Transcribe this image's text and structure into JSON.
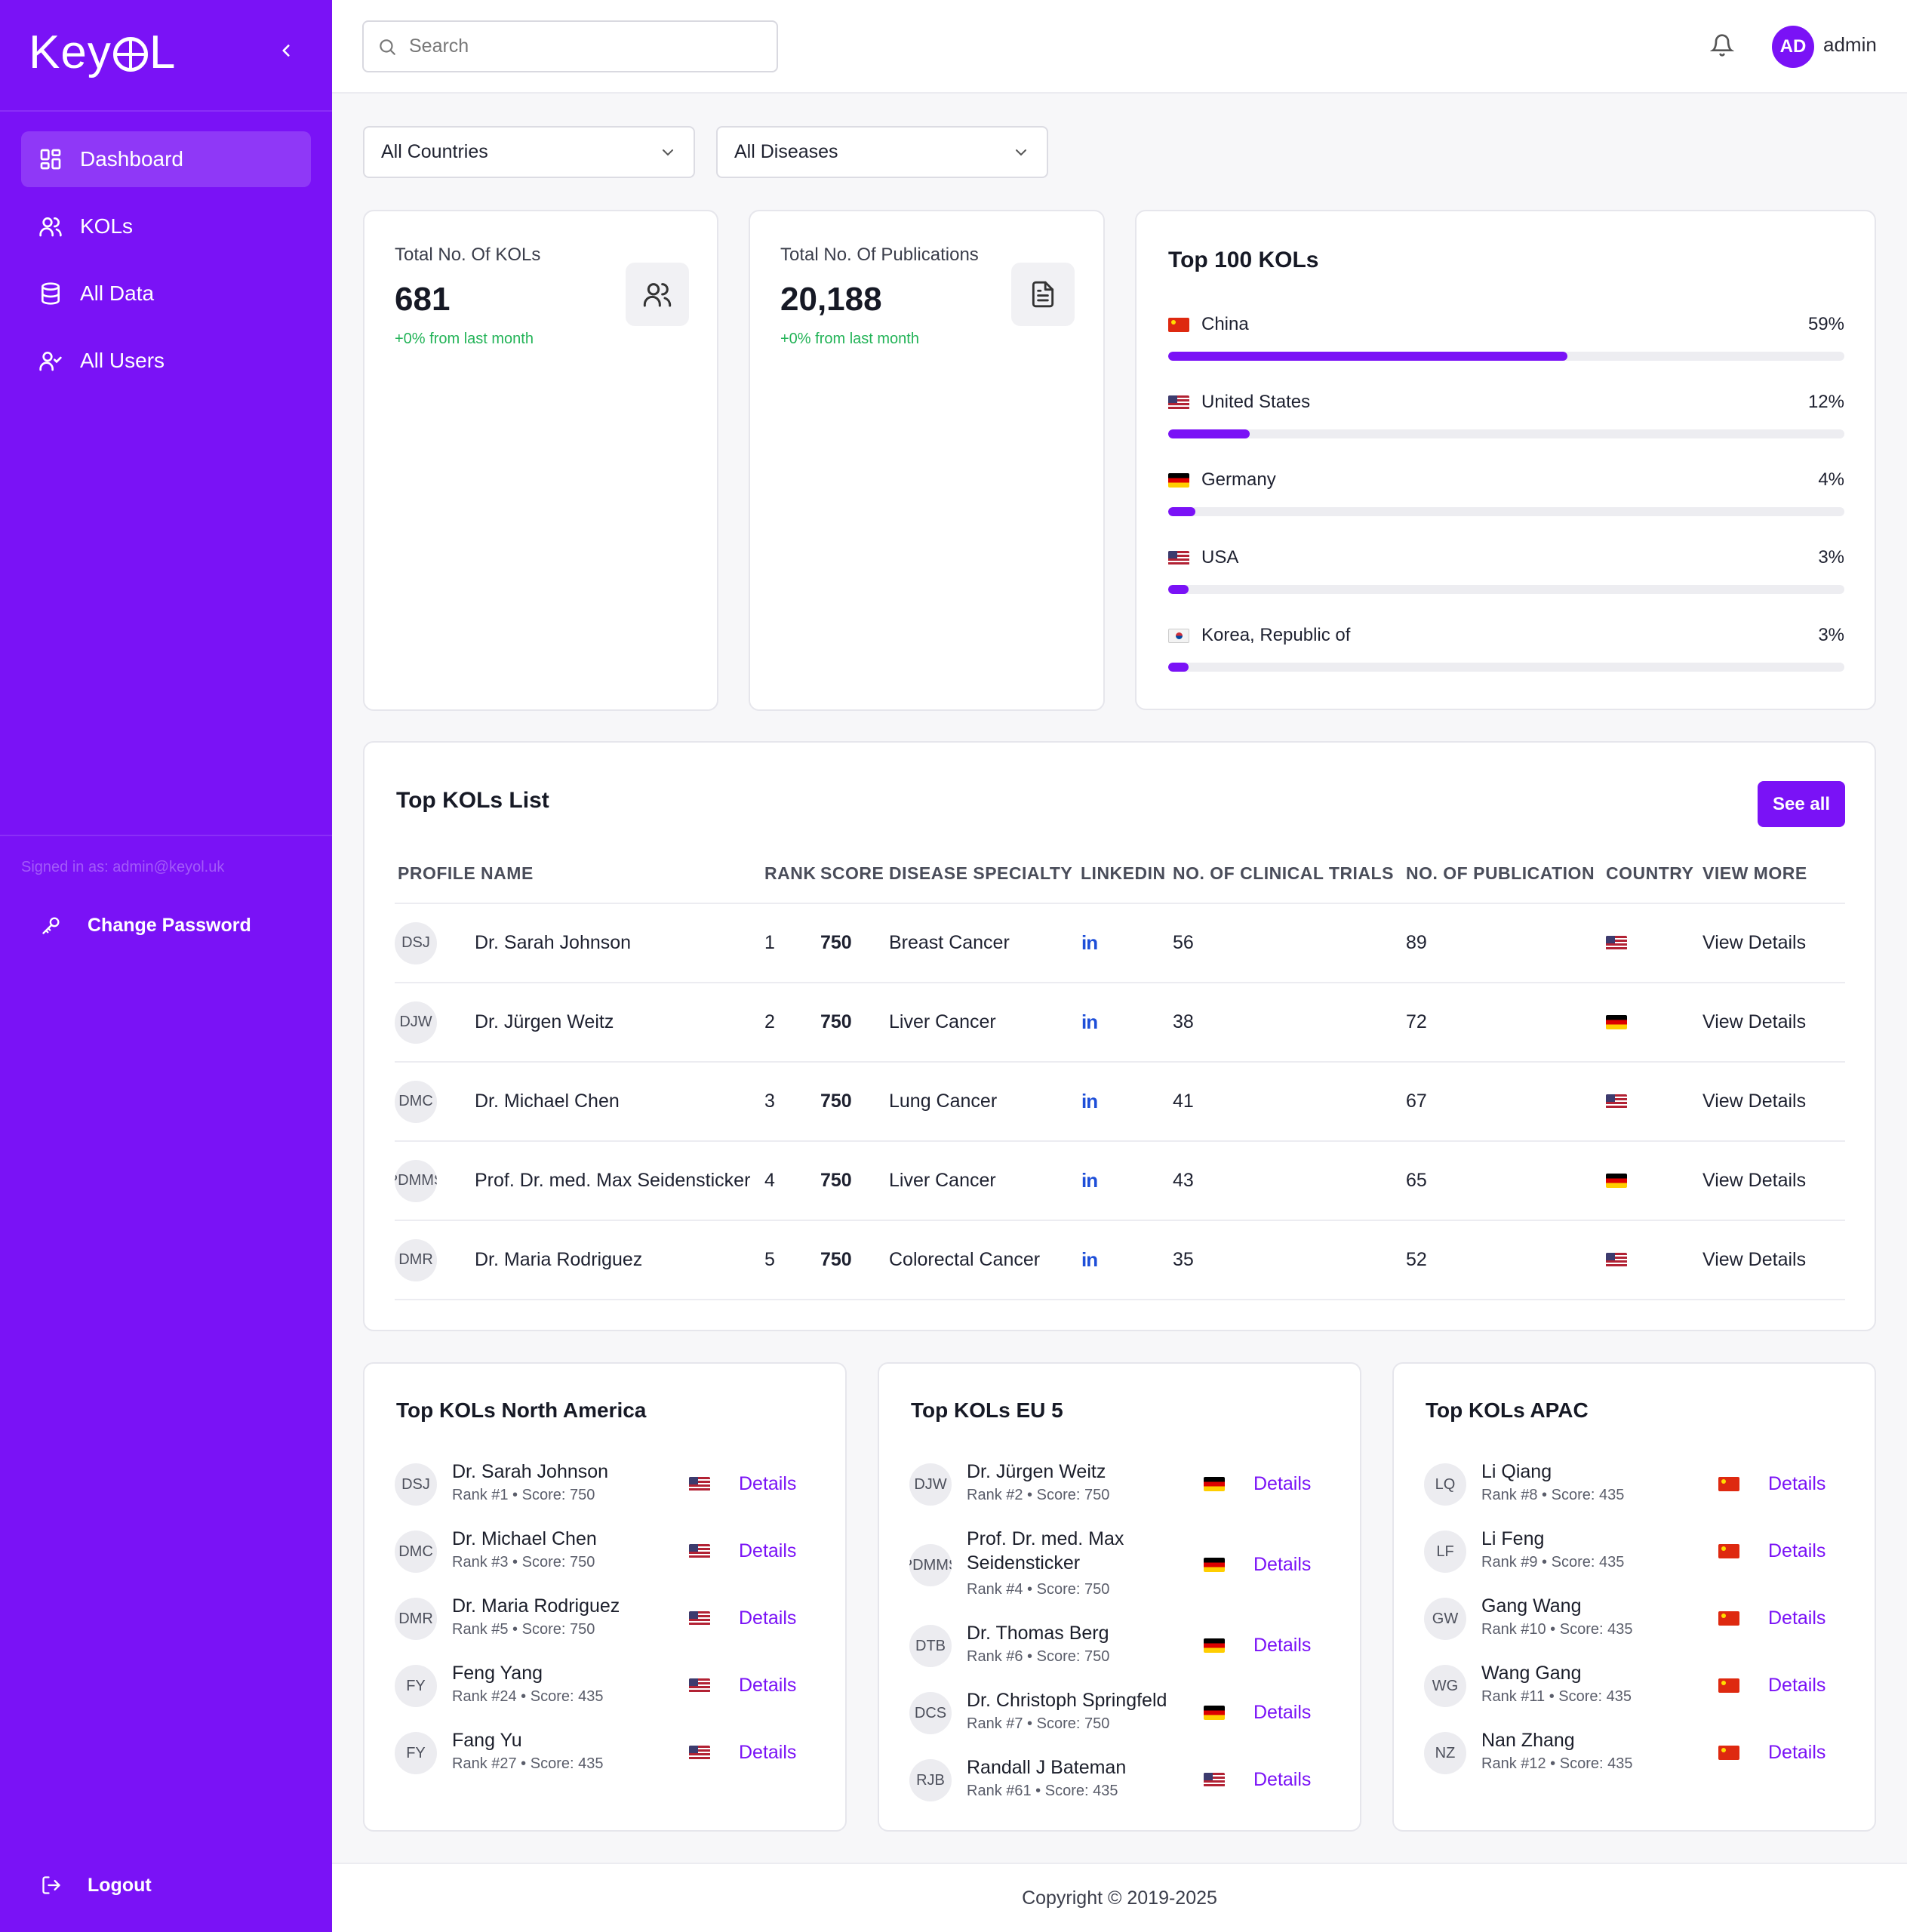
{
  "app": {
    "logo_text_left": "Key",
    "logo_text_right": "L"
  },
  "sidebar": {
    "items": [
      {
        "label": "Dashboard",
        "icon": "dashboard-grid-icon",
        "active": true
      },
      {
        "label": "KOLs",
        "icon": "users-icon",
        "active": false
      },
      {
        "label": "All Data",
        "icon": "database-icon",
        "active": false
      },
      {
        "label": "All Users",
        "icon": "user-check-icon",
        "active": false
      }
    ],
    "signed_in": "Signed in as: admin@keyol.uk",
    "change_password": "Change Password",
    "logout": "Logout"
  },
  "header": {
    "search_placeholder": "Search",
    "avatar_initials": "AD",
    "username": "admin"
  },
  "filters": {
    "country": "All Countries",
    "disease": "All Diseases"
  },
  "stats": {
    "kols": {
      "label": "Total No. Of KOLs",
      "value": "681",
      "delta": "+0% from last month"
    },
    "publications": {
      "label": "Total No. Of Publications",
      "value": "20,188",
      "delta": "+0% from last month"
    }
  },
  "top100": {
    "title": "Top 100 KOLs",
    "countries": [
      {
        "name": "China",
        "pct": "59%",
        "fraction": 0.59,
        "flag": "cn"
      },
      {
        "name": "United States",
        "pct": "12%",
        "fraction": 0.12,
        "flag": "us"
      },
      {
        "name": "Germany",
        "pct": "4%",
        "fraction": 0.04,
        "flag": "de"
      },
      {
        "name": "USA",
        "pct": "3%",
        "fraction": 0.03,
        "flag": "us"
      },
      {
        "name": "Korea, Republic of",
        "pct": "3%",
        "fraction": 0.03,
        "flag": "kr"
      }
    ]
  },
  "kol_table": {
    "title": "Top KOLs List",
    "see_all": "See all",
    "headers": [
      "PROFILE NAME",
      "RANK",
      "SCORE",
      "DISEASE SPECIALTY",
      "LINKEDIN",
      "NO. OF CLINICAL TRIALS",
      "NO. OF PUBLICATION",
      "COUNTRY",
      "VIEW MORE"
    ],
    "linkedin_glyph": "in",
    "view_label": "View Details",
    "rows": [
      {
        "initials": "DSJ",
        "name": "Dr. Sarah Johnson",
        "rank": "1",
        "score": "750",
        "disease": "Breast Cancer",
        "trials": "56",
        "pubs": "89",
        "flag": "us"
      },
      {
        "initials": "DJW",
        "name": "Dr. Jürgen Weitz",
        "rank": "2",
        "score": "750",
        "disease": "Liver Cancer",
        "trials": "38",
        "pubs": "72",
        "flag": "de"
      },
      {
        "initials": "DMC",
        "name": "Dr. Michael Chen",
        "rank": "3",
        "score": "750",
        "disease": "Lung Cancer",
        "trials": "41",
        "pubs": "67",
        "flag": "us"
      },
      {
        "initials": "PDMMS",
        "name": "Prof. Dr. med. Max Seidensticker",
        "rank": "4",
        "score": "750",
        "disease": "Liver Cancer",
        "trials": "43",
        "pubs": "65",
        "flag": "de"
      },
      {
        "initials": "DMR",
        "name": "Dr. Maria Rodriguez",
        "rank": "5",
        "score": "750",
        "disease": "Colorectal Cancer",
        "trials": "35",
        "pubs": "52",
        "flag": "us"
      }
    ]
  },
  "regions": {
    "details_label": "Details",
    "na": {
      "title": "Top KOLs North America",
      "items": [
        {
          "initials": "DSJ",
          "name": "Dr. Sarah Johnson",
          "sub": "Rank #1 • Score: 750",
          "flag": "us"
        },
        {
          "initials": "DMC",
          "name": "Dr. Michael Chen",
          "sub": "Rank #3 • Score: 750",
          "flag": "us"
        },
        {
          "initials": "DMR",
          "name": "Dr. Maria Rodriguez",
          "sub": "Rank #5 • Score: 750",
          "flag": "us"
        },
        {
          "initials": "FY",
          "name": "Feng Yang",
          "sub": "Rank #24 • Score: 435",
          "flag": "us"
        },
        {
          "initials": "FY",
          "name": "Fang Yu",
          "sub": "Rank #27 • Score: 435",
          "flag": "us"
        }
      ]
    },
    "eu": {
      "title": "Top KOLs EU 5",
      "items": [
        {
          "initials": "DJW",
          "name": "Dr. Jürgen Weitz",
          "sub": "Rank #2 • Score: 750",
          "flag": "de"
        },
        {
          "initials": "PDMMS",
          "name": "Prof. Dr. med. Max Seidensticker",
          "sub": "Rank #4 • Score: 750",
          "flag": "de"
        },
        {
          "initials": "DTB",
          "name": "Dr. Thomas Berg",
          "sub": "Rank #6 • Score: 750",
          "flag": "de"
        },
        {
          "initials": "DCS",
          "name": "Dr. Christoph Springfeld",
          "sub": "Rank #7 • Score: 750",
          "flag": "de"
        },
        {
          "initials": "RJB",
          "name": "Randall J Bateman",
          "sub": "Rank #61 • Score: 435",
          "flag": "us"
        }
      ]
    },
    "apac": {
      "title": "Top KOLs APAC",
      "items": [
        {
          "initials": "LQ",
          "name": "Li Qiang",
          "sub": "Rank #8 • Score: 435",
          "flag": "cn"
        },
        {
          "initials": "LF",
          "name": "Li Feng",
          "sub": "Rank #9 • Score: 435",
          "flag": "cn"
        },
        {
          "initials": "GW",
          "name": "Gang Wang",
          "sub": "Rank #10 • Score: 435",
          "flag": "cn"
        },
        {
          "initials": "WG",
          "name": "Wang Gang",
          "sub": "Rank #11 • Score: 435",
          "flag": "cn"
        },
        {
          "initials": "NZ",
          "name": "Nan Zhang",
          "sub": "Rank #12 • Score: 435",
          "flag": "cn"
        }
      ]
    }
  },
  "footer": {
    "copyright": "Copyright © 2019-2025"
  },
  "colors": {
    "brand": "#7a12f6",
    "positive": "#22b357",
    "linkedin": "#1d4ed8"
  }
}
